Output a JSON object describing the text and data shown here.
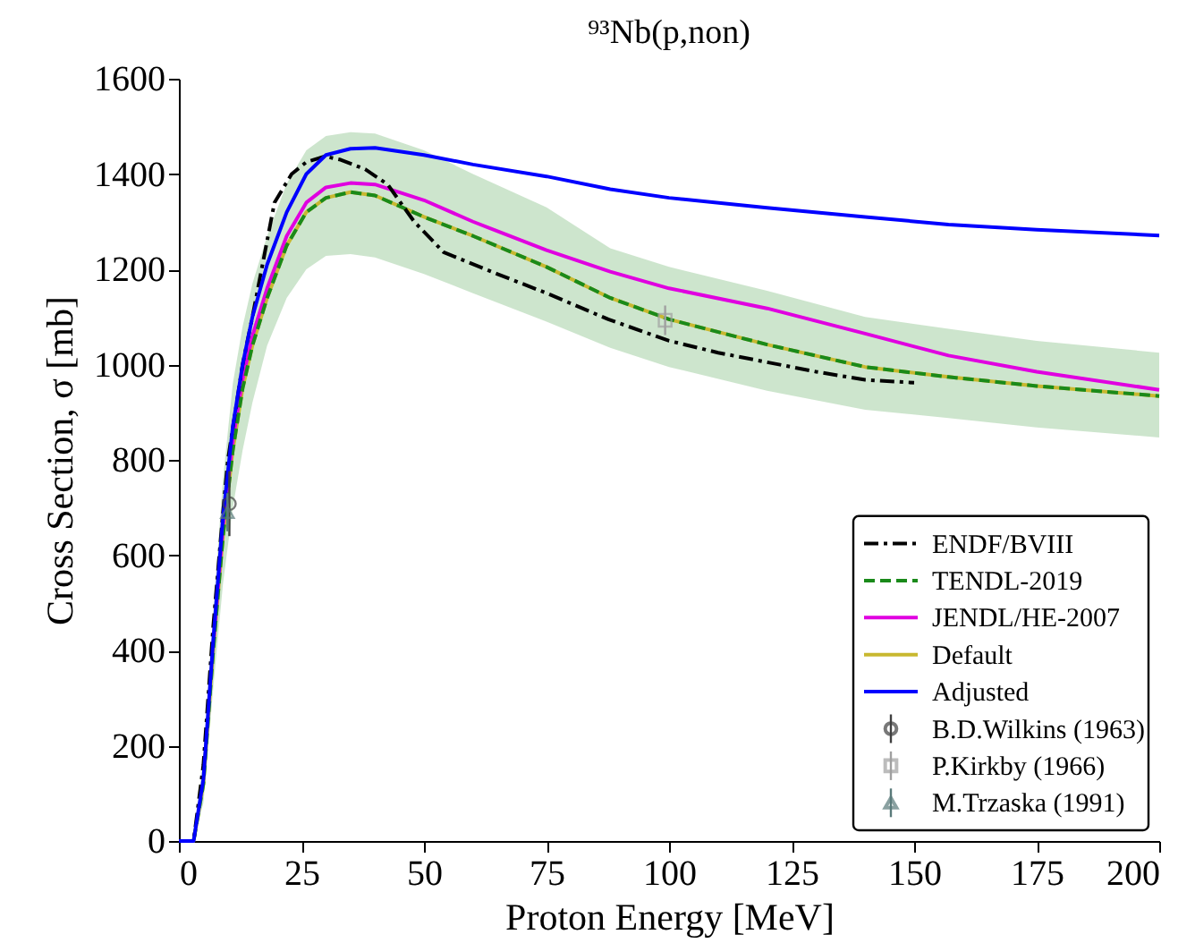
{
  "chart_data": {
    "type": "line",
    "title": "⁹³Nb(p,non)",
    "xlabel": "Proton Energy [MeV]",
    "ylabel": "Cross Section, σ [mb]",
    "xlim": [
      0,
      200
    ],
    "xticks": [
      0,
      25,
      50,
      75,
      100,
      125,
      150,
      175,
      200
    ],
    "ylim": [
      0,
      1600
    ],
    "yticks": [
      0,
      200,
      400,
      600,
      800,
      1000,
      1200,
      1400,
      1600
    ],
    "grid": false,
    "legend": "bottom right",
    "marker": "none",
    "series": [
      {
        "name": "ENDF/BVIII",
        "color": "#000000",
        "line_style": "dashdot",
        "x": [
          0,
          3,
          5,
          7,
          9,
          10,
          11.5,
          13,
          15,
          19.5,
          23,
          26,
          29.8,
          33,
          38,
          42.6,
          48,
          54,
          65,
          75,
          87.6,
          100,
          110,
          120,
          130,
          140,
          150
        ],
        "values": [
          0,
          0,
          160,
          450,
          690,
          800,
          900,
          1000,
          1100,
          1340,
          1400,
          1425,
          1437,
          1430,
          1410,
          1378,
          1300,
          1236,
          1190,
          1150,
          1095,
          1050,
          1025,
          1005,
          985,
          968,
          962
        ]
      },
      {
        "name": "TENDL-2019",
        "color": "#1a8a1a",
        "line_style": "dashed",
        "x": [
          0,
          3,
          5,
          7,
          9,
          11,
          13,
          15,
          18,
          22,
          26,
          30,
          35,
          40,
          50,
          60,
          75,
          88,
          100,
          120,
          140,
          157,
          175,
          200
        ],
        "values": [
          0,
          0,
          120,
          400,
          640,
          820,
          950,
          1040,
          1140,
          1250,
          1320,
          1350,
          1362,
          1355,
          1310,
          1270,
          1205,
          1140,
          1095,
          1042,
          995,
          974,
          955,
          934
        ],
        "lower": [
          0,
          0,
          80,
          320,
          540,
          700,
          820,
          920,
          1040,
          1140,
          1200,
          1228,
          1232,
          1225,
          1190,
          1150,
          1090,
          1035,
          995,
          945,
          905,
          888,
          868,
          847
        ],
        "upper": [
          0,
          0,
          180,
          480,
          760,
          960,
          1080,
          1170,
          1270,
          1380,
          1450,
          1480,
          1488,
          1485,
          1450,
          1400,
          1330,
          1244,
          1205,
          1155,
          1100,
          1075,
          1050,
          1025
        ]
      },
      {
        "name": "JENDL/HE-2007",
        "color": "#e000e0",
        "line_style": "solid",
        "x": [
          7,
          9,
          11,
          13,
          15,
          18,
          22,
          26,
          30,
          35,
          40,
          50,
          60,
          75,
          88,
          100,
          120,
          140,
          157,
          175,
          200
        ],
        "values": [
          410,
          660,
          840,
          970,
          1060,
          1160,
          1270,
          1340,
          1372,
          1381,
          1378,
          1345,
          1300,
          1240,
          1195,
          1160,
          1118,
          1065,
          1019,
          985,
          947
        ]
      },
      {
        "name": "Default",
        "color": "#c8b830",
        "line_style": "solid",
        "x": [
          0,
          3,
          5,
          7,
          9,
          11,
          13,
          15,
          18,
          22,
          26,
          30,
          35,
          40,
          50,
          60,
          75,
          88,
          100,
          120,
          140,
          157,
          175,
          200
        ],
        "values": [
          0,
          0,
          120,
          400,
          640,
          820,
          950,
          1040,
          1140,
          1250,
          1320,
          1350,
          1362,
          1355,
          1310,
          1270,
          1205,
          1140,
          1095,
          1042,
          995,
          974,
          955,
          934
        ]
      },
      {
        "name": "Adjusted",
        "color": "#0000ff",
        "line_style": "solid",
        "x": [
          0,
          3,
          5,
          7,
          9,
          11,
          13,
          15,
          18,
          22,
          26,
          30,
          35,
          40,
          50,
          60,
          75,
          88,
          100,
          120,
          140,
          157,
          175,
          200
        ],
        "values": [
          0,
          0,
          130,
          420,
          680,
          870,
          1000,
          1100,
          1210,
          1320,
          1400,
          1440,
          1453,
          1455,
          1440,
          1420,
          1395,
          1368,
          1350,
          1329,
          1310,
          1294,
          1283,
          1271
        ]
      },
      {
        "name": "B.D.Wilkins (1963)",
        "type": "scatter",
        "marker": "circle",
        "color": "#404040",
        "x": [
          10.3
        ],
        "values": [
          708
        ],
        "errors": [
          68
        ]
      },
      {
        "name": "P.Kirkby (1966)",
        "type": "scatter",
        "marker": "square",
        "color": "#a0a0a0",
        "x": [
          99.2
        ],
        "values": [
          1093
        ],
        "errors": [
          31
        ]
      },
      {
        "name": "M.Trzaska (1991)",
        "type": "scatter",
        "marker": "triangle",
        "color": "#5a7a7a",
        "x": [
          9.9
        ],
        "values": [
          690
        ],
        "errors": [
          40
        ]
      }
    ]
  }
}
